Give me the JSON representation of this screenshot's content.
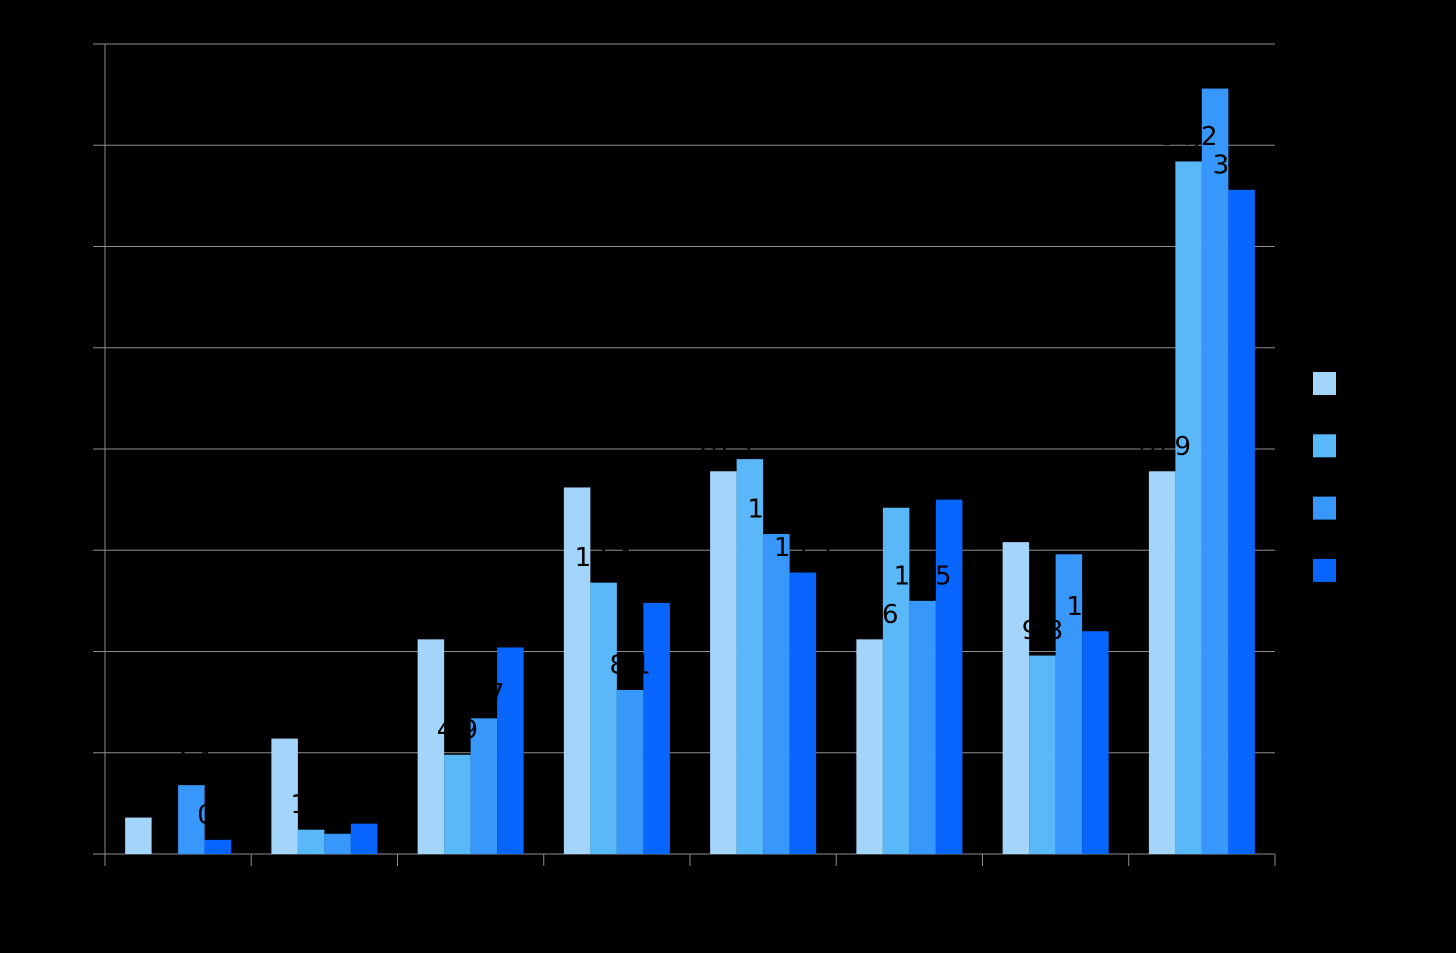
{
  "chart_data": {
    "type": "bar",
    "categories": [
      null,
      null,
      null,
      null,
      null,
      null,
      null,
      null
    ],
    "series": [
      {
        "color": "#a3d5fb",
        "values": [
          1.8,
          5.7,
          10.6,
          18.1,
          18.9,
          10.6,
          15.4,
          18.9
        ],
        "value_labels": [
          "1,8",
          "5,7",
          "10,6",
          "18,1",
          "18,9",
          "10,6",
          "15,4",
          "18,9"
        ]
      },
      {
        "color": "#5bb8f8",
        "values": [
          0,
          1.2,
          4.9,
          13.4,
          19.5,
          17.1,
          9.8,
          34.2
        ],
        "value_labels": [
          "0",
          "1,2",
          "4,9",
          "13,4",
          "19,5",
          "17,1",
          "9,8",
          "34,2"
        ]
      },
      {
        "color": "#3897fb",
        "values": [
          3.4,
          1.0,
          6.7,
          8.1,
          15.8,
          12.5,
          14.8,
          37.8
        ],
        "value_labels": [
          "3,4",
          "1,0",
          "6,7",
          "8,1",
          "15,8",
          "12,5",
          "14,8",
          "37,8"
        ]
      },
      {
        "color": "#0866fe",
        "values": [
          0.7,
          1.5,
          10.2,
          12.4,
          13.9,
          17.5,
          11.0,
          32.8
        ],
        "value_labels": [
          "0,7",
          "1,5",
          "10,2",
          "12,4",
          "13,9",
          "17,5",
          "11,0",
          "32,8"
        ]
      }
    ],
    "ylim": [
      0,
      40
    ],
    "yticks": [
      0,
      5,
      10,
      15,
      20,
      25,
      30,
      35,
      40
    ],
    "grid": true
  }
}
